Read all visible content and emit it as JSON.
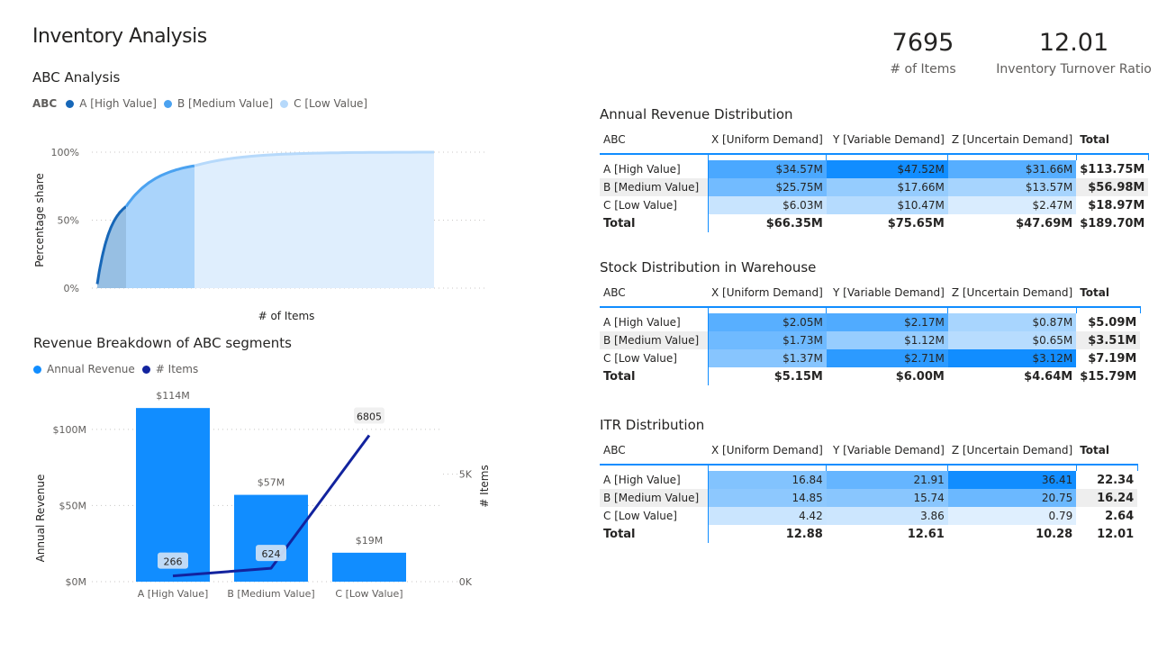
{
  "page": {
    "title": "Inventory Analysis"
  },
  "kpis": [
    {
      "value": "7695",
      "label": "# of Items"
    },
    {
      "value": "12.01",
      "label": "Inventory Turnover Ratio"
    }
  ],
  "colors": {
    "a_high": "#1767b8",
    "b_medium": "#4ba2f0",
    "c_low": "#b6d9fb",
    "revenue_bar": "#118dff",
    "items_line": "#12239e"
  },
  "abc_chart": {
    "title": "ABC Analysis",
    "legend_title": "ABC",
    "legend": [
      {
        "label": "A [High Value]",
        "color": "#1767b8"
      },
      {
        "label": "B [Medium Value]",
        "color": "#4ba2f0"
      },
      {
        "label": "C [Low Value]",
        "color": "#b6d9fb"
      }
    ],
    "ylabel": "Percentage share",
    "xlabel": "# of Items",
    "yticks": [
      "0%",
      "50%",
      "100%"
    ]
  },
  "revenue_chart": {
    "title": "Revenue Breakdown of ABC segments",
    "legend": [
      {
        "label": "Annual Revenue",
        "color": "#118dff"
      },
      {
        "label": "# Items",
        "color": "#12239e"
      }
    ],
    "ylabel": "Annual Revenue",
    "y2label": "# Items",
    "yticks": [
      "$0M",
      "$50M",
      "$100M"
    ],
    "y2ticks": [
      "0K",
      "5K"
    ]
  },
  "chart_data": [
    {
      "type": "area",
      "title": "ABC Analysis",
      "xlabel": "# of Items",
      "ylabel": "Percentage share",
      "ylim": [
        0,
        1
      ],
      "yticks": [
        "0%",
        "50%",
        "100%"
      ],
      "x_total": 7695,
      "series": [
        {
          "name": "A [High Value]",
          "x_range": [
            0,
            266
          ],
          "y_range": [
            0.03,
            0.6
          ]
        },
        {
          "name": "B [Medium Value]",
          "x_range": [
            266,
            890
          ],
          "y_range": [
            0.6,
            0.9
          ]
        },
        {
          "name": "C [Low Value]",
          "x_range": [
            890,
            7695
          ],
          "y_range": [
            0.9,
            1.0
          ]
        }
      ],
      "grid": true,
      "legend": "top-left"
    },
    {
      "type": "bar",
      "title": "Revenue Breakdown of ABC segments",
      "categories": [
        "A [High Value]",
        "B [Medium Value]",
        "C [Low Value]"
      ],
      "series": [
        {
          "name": "Annual Revenue",
          "type": "bar",
          "values": [
            114,
            57,
            19
          ],
          "labels": [
            "$114M",
            "$57M",
            "$19M"
          ],
          "unit": "$M",
          "axis": "left"
        },
        {
          "name": "# Items",
          "type": "line",
          "values": [
            266,
            624,
            6805
          ],
          "labels": [
            "266",
            "624",
            "6805"
          ],
          "axis": "right"
        }
      ],
      "ylabel": "Annual Revenue",
      "y2label": "# Items",
      "ylim": [
        0,
        120
      ],
      "y2lim": [
        0,
        8500
      ],
      "yticks": [
        0,
        50,
        100
      ],
      "ytick_labels": [
        "$0M",
        "$50M",
        "$100M"
      ],
      "y2ticks": [
        0,
        5000
      ],
      "y2tick_labels": [
        "0K",
        "5K"
      ],
      "grid": true,
      "legend": "top-left"
    }
  ],
  "matrices": [
    {
      "title": "Annual Revenue Distribution",
      "corner": "ABC",
      "columns": [
        "X [Uniform Demand]",
        "Y [Variable Demand]",
        "Z [Uncertain Demand]"
      ],
      "total_label": "Total",
      "rows": [
        {
          "label": "A [High Value]",
          "cells": [
            "$34.57M",
            "$47.52M",
            "$31.66M"
          ],
          "shade": [
            0.73,
            1.0,
            0.67
          ],
          "total": "$113.75M"
        },
        {
          "label": "B [Medium Value]",
          "cells": [
            "$25.75M",
            "$17.66M",
            "$13.57M"
          ],
          "shade": [
            0.54,
            0.37,
            0.29
          ],
          "total": "$56.98M"
        },
        {
          "label": "C [Low Value]",
          "cells": [
            "$6.03M",
            "$10.47M",
            "$2.47M"
          ],
          "shade": [
            0.13,
            0.22,
            0.05
          ],
          "total": "$18.97M"
        }
      ],
      "totals": {
        "label": "Total",
        "cells": [
          "$66.35M",
          "$75.65M",
          "$47.69M"
        ],
        "grand": "$189.70M"
      }
    },
    {
      "title": "Stock Distribution in Warehouse",
      "corner": "ABC",
      "columns": [
        "X [Uniform Demand]",
        "Y [Variable Demand]",
        "Z [Uncertain Demand]"
      ],
      "total_label": "Total",
      "rows": [
        {
          "label": "A [High Value]",
          "cells": [
            "$2.05M",
            "$2.17M",
            "$0.87M"
          ],
          "shade": [
            0.66,
            0.7,
            0.28
          ],
          "total": "$5.09M"
        },
        {
          "label": "B [Medium Value]",
          "cells": [
            "$1.73M",
            "$1.12M",
            "$0.65M"
          ],
          "shade": [
            0.55,
            0.36,
            0.21
          ],
          "total": "$3.51M"
        },
        {
          "label": "C [Low Value]",
          "cells": [
            "$1.37M",
            "$2.71M",
            "$3.12M"
          ],
          "shade": [
            0.44,
            0.87,
            1.0
          ],
          "total": "$7.19M"
        }
      ],
      "totals": {
        "label": "Total",
        "cells": [
          "$5.15M",
          "$6.00M",
          "$4.64M"
        ],
        "grand": "$15.79M"
      }
    },
    {
      "title": "ITR Distribution",
      "corner": "ABC",
      "columns": [
        "X [Uniform Demand]",
        "Y [Variable Demand]",
        "Z [Uncertain Demand]"
      ],
      "total_label": "Total",
      "rows": [
        {
          "label": "A [High Value]",
          "cells": [
            "16.84",
            "21.91",
            "36.41"
          ],
          "shade": [
            0.46,
            0.6,
            1.0
          ],
          "total": "22.34"
        },
        {
          "label": "B [Medium Value]",
          "cells": [
            "14.85",
            "15.74",
            "20.75"
          ],
          "shade": [
            0.41,
            0.43,
            0.57
          ],
          "total": "16.24"
        },
        {
          "label": "C [Low Value]",
          "cells": [
            "4.42",
            "3.86",
            "0.79"
          ],
          "shade": [
            0.12,
            0.11,
            0.02
          ],
          "total": "2.64"
        }
      ],
      "totals": {
        "label": "Total",
        "cells": [
          "12.88",
          "12.61",
          "10.28"
        ],
        "grand": "12.01"
      }
    }
  ]
}
